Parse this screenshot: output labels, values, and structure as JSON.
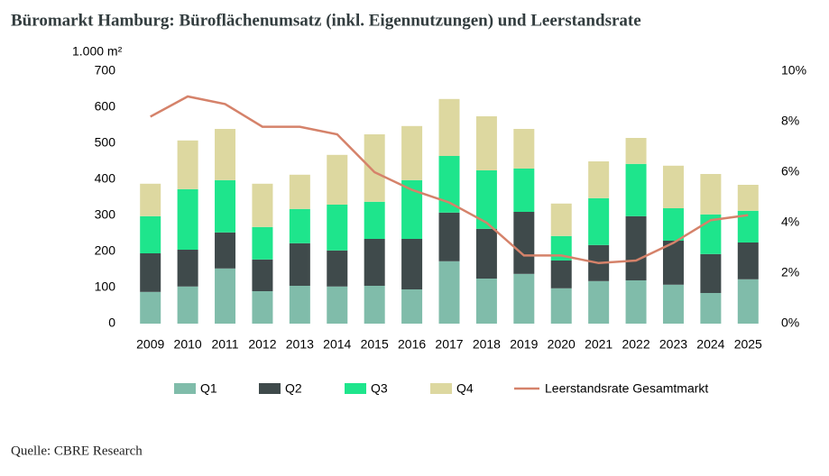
{
  "chart_data": {
    "type": "bar",
    "stacked": true,
    "title": "Büromarkt Hamburg: Büroflächenumsatz (inkl. Eigennutzungen) und Leerstandsrate",
    "y_label": "1.000 m²",
    "source": "Quelle: CBRE Research",
    "categories": [
      "2009",
      "2010",
      "2011",
      "2012",
      "2013",
      "2014",
      "2015",
      "2016",
      "2017",
      "2018",
      "2019",
      "2020",
      "2021",
      "2022",
      "2023",
      "2024",
      "2025"
    ],
    "series": [
      {
        "name": "Q1",
        "color": "#80bcaa",
        "values": [
          88,
          103,
          153,
          90,
          105,
          103,
          105,
          95,
          173,
          125,
          138,
          98,
          118,
          120,
          108,
          85,
          123
        ]
      },
      {
        "name": "Q2",
        "color": "#3f4a4b",
        "values": [
          107,
          102,
          100,
          88,
          118,
          100,
          130,
          140,
          135,
          138,
          172,
          77,
          100,
          178,
          122,
          108,
          102
        ]
      },
      {
        "name": "Q3",
        "color": "#1ee58c",
        "values": [
          103,
          168,
          145,
          90,
          95,
          127,
          103,
          163,
          157,
          162,
          120,
          68,
          130,
          145,
          90,
          110,
          88
        ]
      },
      {
        "name": "Q4",
        "color": "#ddd8a0",
        "values": [
          90,
          135,
          142,
          120,
          95,
          138,
          187,
          150,
          158,
          150,
          110,
          90,
          102,
          72,
          118,
          112,
          72
        ]
      },
      {
        "name": "Leerstandsrate Gesamtmarkt",
        "type": "line",
        "axis": "y2",
        "color": "#d5826a",
        "values": [
          8.2,
          9.0,
          8.7,
          7.8,
          7.8,
          7.5,
          6.0,
          5.3,
          4.8,
          4.0,
          2.7,
          2.7,
          2.4,
          2.5,
          3.2,
          4.1,
          4.3
        ]
      }
    ],
    "ylim": [
      0,
      700
    ],
    "yticks": [
      0,
      100,
      200,
      300,
      400,
      500,
      600,
      700
    ],
    "y2lim": [
      0,
      10
    ],
    "y2ticks": [
      {
        "value": 0,
        "label": "0%"
      },
      {
        "value": 2,
        "label": "2%"
      },
      {
        "value": 4,
        "label": "4%"
      },
      {
        "value": 6,
        "label": "6%"
      },
      {
        "value": 8,
        "label": "8%"
      },
      {
        "value": 10,
        "label": "10%"
      }
    ],
    "grid": false,
    "legend": "bottom"
  }
}
